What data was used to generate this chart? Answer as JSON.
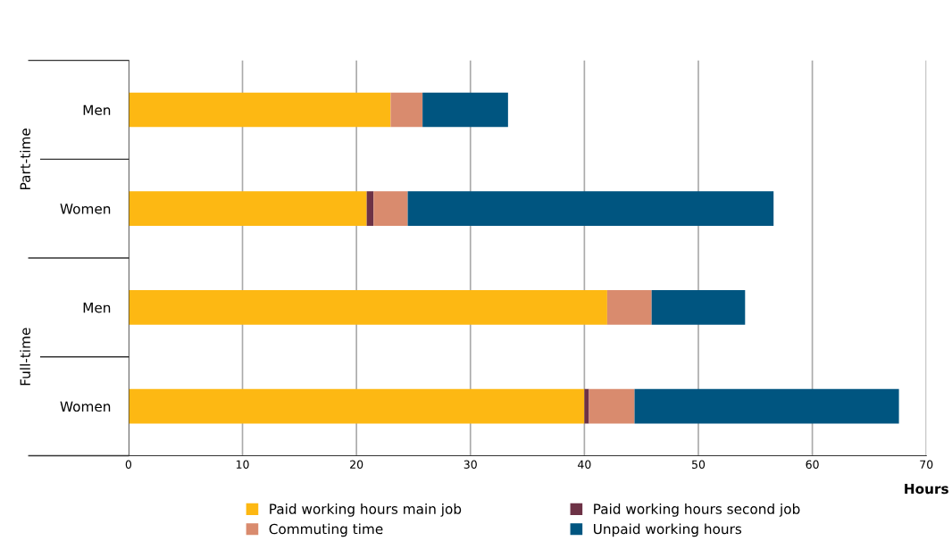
{
  "chart_data": {
    "type": "bar",
    "orientation": "horizontal",
    "stacked": true,
    "categories": [
      "Men",
      "Women",
      "Men",
      "Women"
    ],
    "series": [
      {
        "name": "Paid working hours main job",
        "color": "#fdb813",
        "values": [
          23.0,
          20.9,
          42.0,
          40.0
        ]
      },
      {
        "name": "Paid working hours second job",
        "color": "#6d3246",
        "values": [
          0,
          0.6,
          0,
          0.4
        ]
      },
      {
        "name": "Commuting time",
        "color": "#d98b6e",
        "values": [
          2.8,
          3.0,
          3.9,
          4.0
        ]
      },
      {
        "name": "Unpaid working hours",
        "color": "#005580",
        "values": [
          7.5,
          32.1,
          8.2,
          23.2
        ]
      }
    ],
    "xlabel": "Hours",
    "xlim": [
      0,
      70
    ],
    "xticks": [
      0,
      10,
      20,
      30,
      40,
      50,
      60,
      70
    ],
    "annotations": [
      "Part-time",
      "Full-time"
    ],
    "grid": "x",
    "legend": "bottom"
  }
}
